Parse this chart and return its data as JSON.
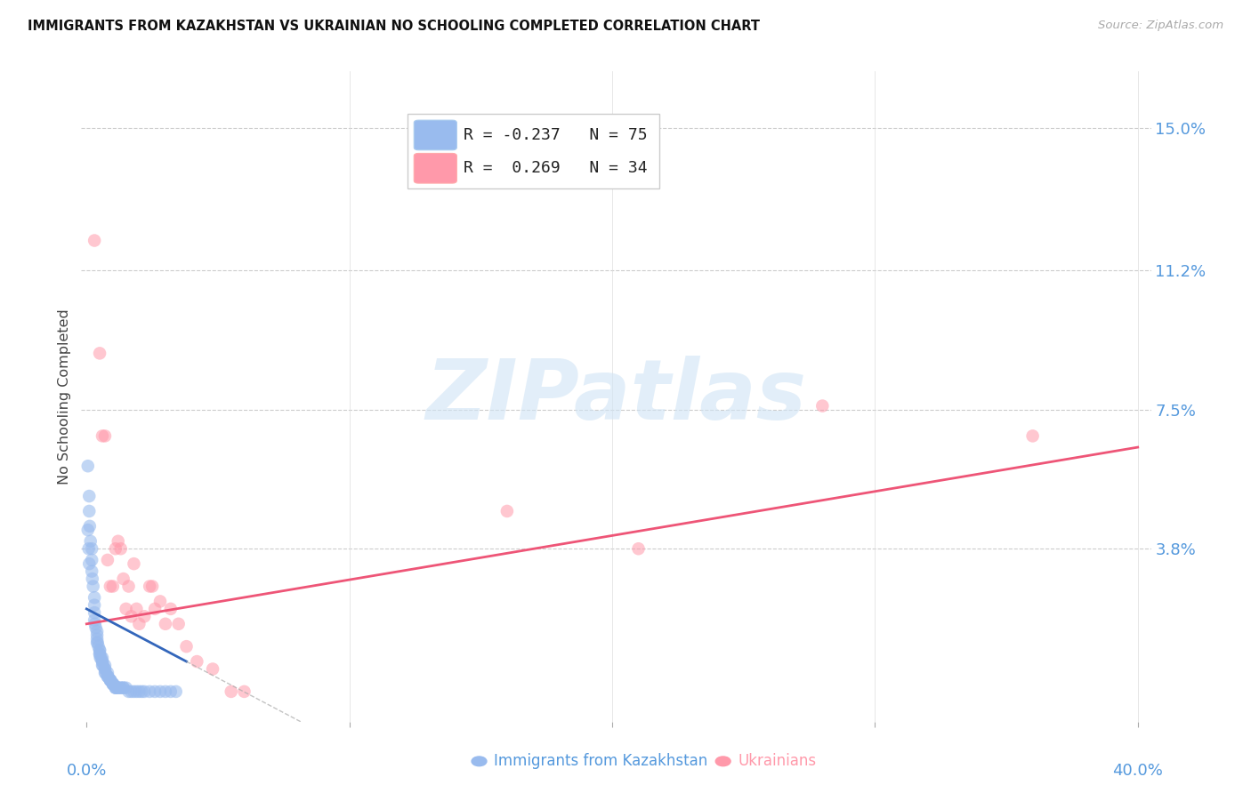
{
  "title": "IMMIGRANTS FROM KAZAKHSTAN VS UKRAINIAN NO SCHOOLING COMPLETED CORRELATION CHART",
  "source": "Source: ZipAtlas.com",
  "ylabel": "No Schooling Completed",
  "ytick_labels": [
    "15.0%",
    "11.2%",
    "7.5%",
    "3.8%"
  ],
  "ytick_values": [
    0.15,
    0.112,
    0.075,
    0.038
  ],
  "xtick_left_label": "0.0%",
  "xtick_right_label": "40.0%",
  "xmin": -0.002,
  "xmax": 0.405,
  "ymin": -0.008,
  "ymax": 0.165,
  "blue_color": "#99BBEE",
  "pink_color": "#FF99AA",
  "blue_line_color": "#3366BB",
  "pink_line_color": "#EE5577",
  "legend_label1": "Immigrants from Kazakhstan",
  "legend_label2": "Ukrainians",
  "watermark_text": "ZIPatlas",
  "blue_x": [
    0.0005,
    0.001,
    0.001,
    0.0012,
    0.0015,
    0.002,
    0.002,
    0.002,
    0.0022,
    0.0025,
    0.003,
    0.003,
    0.003,
    0.003,
    0.0032,
    0.0035,
    0.004,
    0.004,
    0.004,
    0.004,
    0.0042,
    0.0045,
    0.005,
    0.005,
    0.005,
    0.005,
    0.0052,
    0.0055,
    0.006,
    0.006,
    0.006,
    0.006,
    0.0062,
    0.007,
    0.007,
    0.007,
    0.007,
    0.0072,
    0.008,
    0.008,
    0.008,
    0.0082,
    0.009,
    0.009,
    0.009,
    0.0092,
    0.01,
    0.01,
    0.01,
    0.0102,
    0.011,
    0.011,
    0.0112,
    0.012,
    0.012,
    0.013,
    0.013,
    0.014,
    0.014,
    0.015,
    0.016,
    0.017,
    0.018,
    0.019,
    0.02,
    0.021,
    0.022,
    0.024,
    0.026,
    0.028,
    0.03,
    0.032,
    0.034,
    0.0005,
    0.0008,
    0.001
  ],
  "blue_y": [
    0.06,
    0.052,
    0.048,
    0.044,
    0.04,
    0.038,
    0.035,
    0.032,
    0.03,
    0.028,
    0.025,
    0.023,
    0.021,
    0.019,
    0.018,
    0.017,
    0.016,
    0.015,
    0.014,
    0.013,
    0.013,
    0.012,
    0.011,
    0.011,
    0.01,
    0.01,
    0.009,
    0.009,
    0.009,
    0.008,
    0.008,
    0.007,
    0.007,
    0.007,
    0.006,
    0.006,
    0.005,
    0.005,
    0.005,
    0.004,
    0.004,
    0.004,
    0.003,
    0.003,
    0.003,
    0.003,
    0.002,
    0.002,
    0.002,
    0.002,
    0.001,
    0.001,
    0.001,
    0.001,
    0.001,
    0.001,
    0.001,
    0.001,
    0.001,
    0.001,
    0.0,
    0.0,
    0.0,
    0.0,
    0.0,
    0.0,
    0.0,
    0.0,
    0.0,
    0.0,
    0.0,
    0.0,
    0.0,
    0.043,
    0.038,
    0.034
  ],
  "pink_x": [
    0.003,
    0.005,
    0.006,
    0.007,
    0.008,
    0.009,
    0.01,
    0.011,
    0.012,
    0.013,
    0.014,
    0.015,
    0.016,
    0.017,
    0.018,
    0.019,
    0.02,
    0.022,
    0.024,
    0.025,
    0.026,
    0.028,
    0.03,
    0.032,
    0.035,
    0.038,
    0.042,
    0.048,
    0.055,
    0.06,
    0.16,
    0.21,
    0.28,
    0.36
  ],
  "pink_y": [
    0.12,
    0.09,
    0.068,
    0.068,
    0.035,
    0.028,
    0.028,
    0.038,
    0.04,
    0.038,
    0.03,
    0.022,
    0.028,
    0.02,
    0.034,
    0.022,
    0.018,
    0.02,
    0.028,
    0.028,
    0.022,
    0.024,
    0.018,
    0.022,
    0.018,
    0.012,
    0.008,
    0.006,
    0.0,
    0.0,
    0.048,
    0.038,
    0.076,
    0.068
  ],
  "pink_line_start_y": 0.018,
  "pink_line_end_y": 0.065,
  "blue_line_start_y": 0.022,
  "blue_line_end_y": 0.008
}
